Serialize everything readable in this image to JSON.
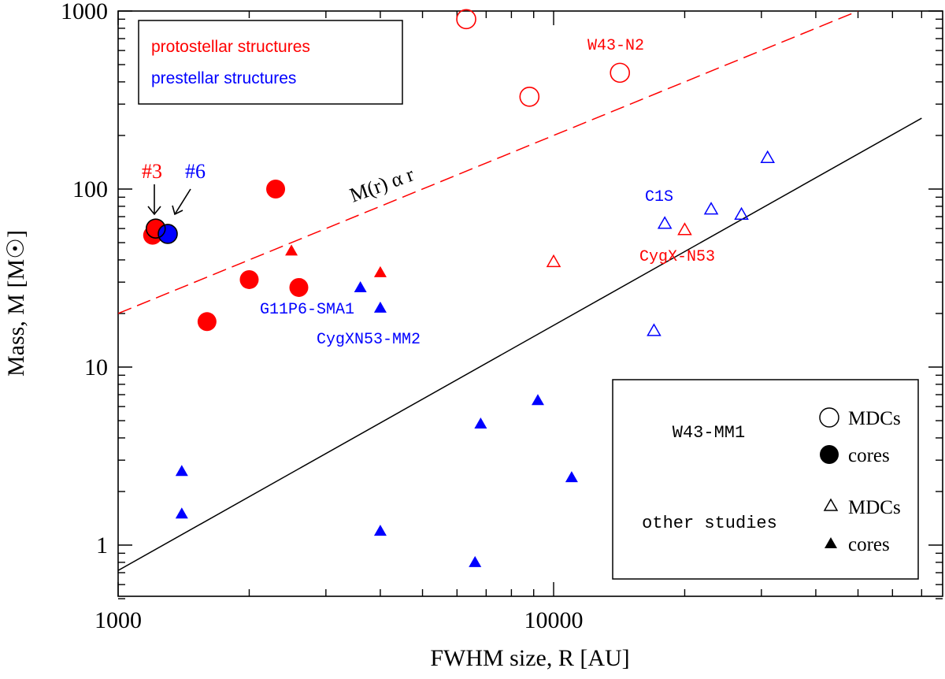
{
  "colors": {
    "red": "#ff0000",
    "blue": "#0000ff",
    "black": "#000000"
  },
  "chart_data": {
    "type": "scatter",
    "xscale": "log",
    "yscale": "log",
    "xlim": [
      1000,
      70000
    ],
    "ylim": [
      0.5,
      1000
    ],
    "xlabel": "FWHM size, R [AU]",
    "ylabel": "Mass, M [M☉]",
    "xticks": [
      {
        "value": 1000,
        "label": "1000"
      },
      {
        "value": 10000,
        "label": "10000"
      }
    ],
    "yticks": [
      {
        "value": 1,
        "label": "1"
      },
      {
        "value": 10,
        "label": "10"
      },
      {
        "value": 100,
        "label": "100"
      },
      {
        "value": 1000,
        "label": "1000"
      }
    ],
    "lines": [
      {
        "name": "M(r) α r",
        "style": "dashed",
        "color": "red",
        "points": [
          [
            1000,
            20
          ],
          [
            50000,
            1000
          ]
        ]
      },
      {
        "style": "solid",
        "color": "black",
        "points": [
          [
            1000,
            0.72
          ],
          [
            70000,
            250
          ]
        ]
      }
    ],
    "line_label": "M(r) α r",
    "series": [
      {
        "name": "W43-MM1 MDCs (protostellar)",
        "marker": "circle-open",
        "color": "red",
        "points": [
          [
            6300,
            900
          ],
          [
            8800,
            330
          ],
          [
            14200,
            450
          ]
        ]
      },
      {
        "name": "W43-MM1 cores (protostellar)",
        "marker": "circle-filled",
        "color": "red",
        "points": [
          [
            1200,
            55
          ],
          [
            1600,
            18
          ],
          [
            2000,
            31
          ],
          [
            2300,
            100
          ],
          [
            2600,
            28
          ],
          [
            1220,
            60
          ]
        ]
      },
      {
        "name": "W43-MM1 cores (prestellar)",
        "marker": "circle-filled",
        "color": "blue",
        "points": [
          [
            1300,
            56
          ]
        ]
      },
      {
        "name": "other studies MDCs (protostellar)",
        "marker": "triangle-open",
        "color": "red",
        "points": [
          [
            10000,
            39
          ],
          [
            20000,
            59
          ]
        ]
      },
      {
        "name": "other studies MDCs (prestellar)",
        "marker": "triangle-open",
        "color": "blue",
        "points": [
          [
            17000,
            16
          ],
          [
            18000,
            64
          ],
          [
            23000,
            77
          ],
          [
            27000,
            72
          ],
          [
            31000,
            150
          ]
        ]
      },
      {
        "name": "other studies cores (protostellar)",
        "marker": "triangle-filled",
        "color": "red",
        "points": [
          [
            2500,
            45
          ],
          [
            4000,
            34
          ]
        ]
      },
      {
        "name": "other studies cores (prestellar)",
        "marker": "triangle-filled",
        "color": "blue",
        "points": [
          [
            1400,
            2.6
          ],
          [
            1400,
            1.5
          ],
          [
            3600,
            28
          ],
          [
            4000,
            21.5
          ],
          [
            4000,
            1.2
          ],
          [
            6600,
            0.8
          ],
          [
            6800,
            4.8
          ],
          [
            9200,
            6.5
          ],
          [
            11000,
            2.4
          ]
        ]
      }
    ],
    "point_labels": [
      {
        "text": "W43-N2",
        "color": "red"
      },
      {
        "text": "C1S",
        "color": "blue"
      },
      {
        "text": "CygX-N53",
        "color": "red"
      },
      {
        "text": "G11P6-SMA1",
        "color": "blue"
      },
      {
        "text": "CygXN53-MM2",
        "color": "blue"
      },
      {
        "text": "#3",
        "color": "red"
      },
      {
        "text": "#6",
        "color": "blue"
      }
    ],
    "legend_top": {
      "placement": "top-left",
      "entries": [
        {
          "text": "protostellar structures",
          "color": "red"
        },
        {
          "text": "prestellar structures",
          "color": "blue"
        }
      ]
    },
    "legend_bottom": {
      "placement": "bottom-right",
      "group1": "W43-MM1",
      "group2": "other studies",
      "mdcs": "MDCs",
      "cores": "cores"
    }
  }
}
